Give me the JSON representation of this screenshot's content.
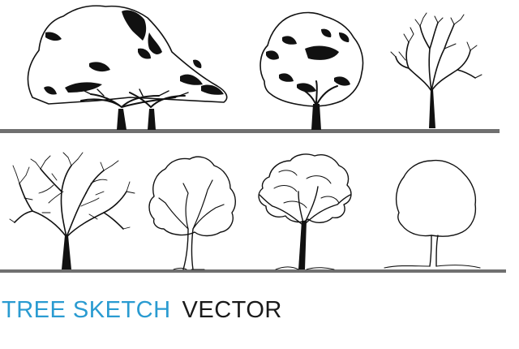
{
  "caption": {
    "part1": "TREE SKETCH",
    "part2": "VECTOR"
  },
  "colors": {
    "caption_accent": "#2a9bd1",
    "caption_dark": "#1a1a1a",
    "ink": "#111111",
    "ground_line": "#707070"
  },
  "illustrations": [
    "acacia-tree-icon",
    "round-oak-tree-icon",
    "bare-branch-tree-icon",
    "bare-spreading-tree-icon",
    "outline-broad-tree-icon",
    "outline-layered-tree-icon",
    "outline-round-tree-icon"
  ]
}
